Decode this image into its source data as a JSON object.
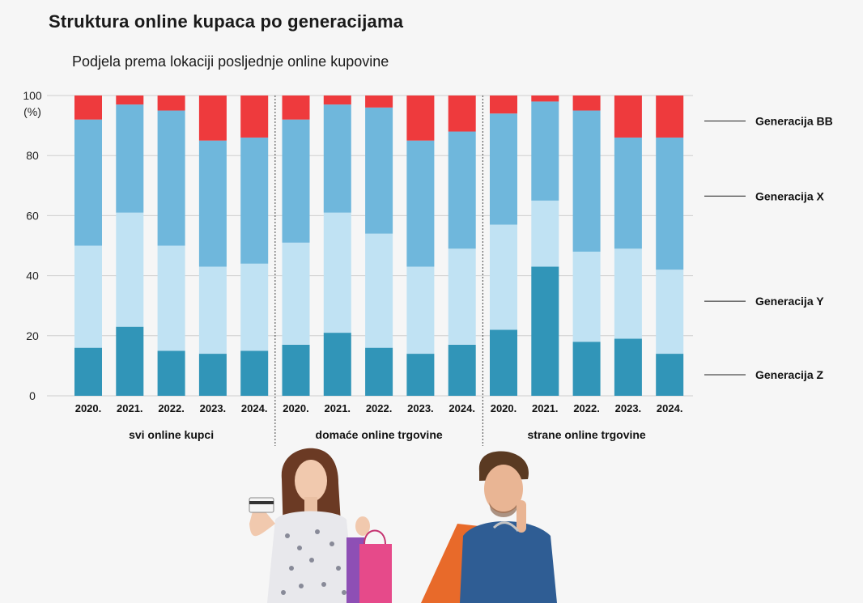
{
  "title": "Struktura online kupaca po generacijama",
  "subtitle": "Podjela prema lokaciji posljednje online kupovine",
  "colors": {
    "Generacija Z": "#3195b8",
    "Generacija Y": "#c0e2f3",
    "Generacija X": "#6fb7dc",
    "Generacija BB": "#ee3a3d",
    "grid": "#cfcfcf",
    "separator": "#444444"
  },
  "chart_data": {
    "type": "bar",
    "stacked": true,
    "y_unit_label": "(%)",
    "ylim": [
      0,
      100
    ],
    "yticks": [
      "0",
      "20",
      "40",
      "60",
      "80",
      "100"
    ],
    "grid": true,
    "legend_position": "right",
    "groups": [
      {
        "label": "svi online kupci",
        "categories": [
          "2020.",
          "2021.",
          "2022.",
          "2023.",
          "2024."
        ],
        "series": [
          {
            "name": "Generacija Z",
            "values": [
              16,
              23,
              15,
              14,
              15
            ]
          },
          {
            "name": "Generacija Y",
            "values": [
              34,
              38,
              35,
              29,
              29
            ]
          },
          {
            "name": "Generacija X",
            "values": [
              42,
              36,
              45,
              42,
              42
            ]
          },
          {
            "name": "Generacija BB",
            "values": [
              8,
              3,
              5,
              15,
              14
            ]
          }
        ]
      },
      {
        "label": "domaće online trgovine",
        "categories": [
          "2020.",
          "2021.",
          "2022.",
          "2023.",
          "2024."
        ],
        "series": [
          {
            "name": "Generacija Z",
            "values": [
              17,
              21,
              16,
              14,
              17
            ]
          },
          {
            "name": "Generacija Y",
            "values": [
              34,
              40,
              38,
              29,
              32
            ]
          },
          {
            "name": "Generacija X",
            "values": [
              41,
              36,
              42,
              42,
              39
            ]
          },
          {
            "name": "Generacija BB",
            "values": [
              8,
              3,
              4,
              15,
              12
            ]
          }
        ]
      },
      {
        "label": "strane online trgovine",
        "categories": [
          "2020.",
          "2021.",
          "2022.",
          "2023.",
          "2024."
        ],
        "series": [
          {
            "name": "Generacija Z",
            "values": [
              22,
              43,
              18,
              19,
              14
            ]
          },
          {
            "name": "Generacija Y",
            "values": [
              35,
              22,
              30,
              30,
              28
            ]
          },
          {
            "name": "Generacija X",
            "values": [
              37,
              33,
              47,
              37,
              44
            ]
          },
          {
            "name": "Generacija BB",
            "values": [
              6,
              2,
              5,
              14,
              14
            ]
          }
        ]
      }
    ],
    "legend": [
      "Generacija BB",
      "Generacija X",
      "Generacija Y",
      "Generacija Z"
    ]
  }
}
